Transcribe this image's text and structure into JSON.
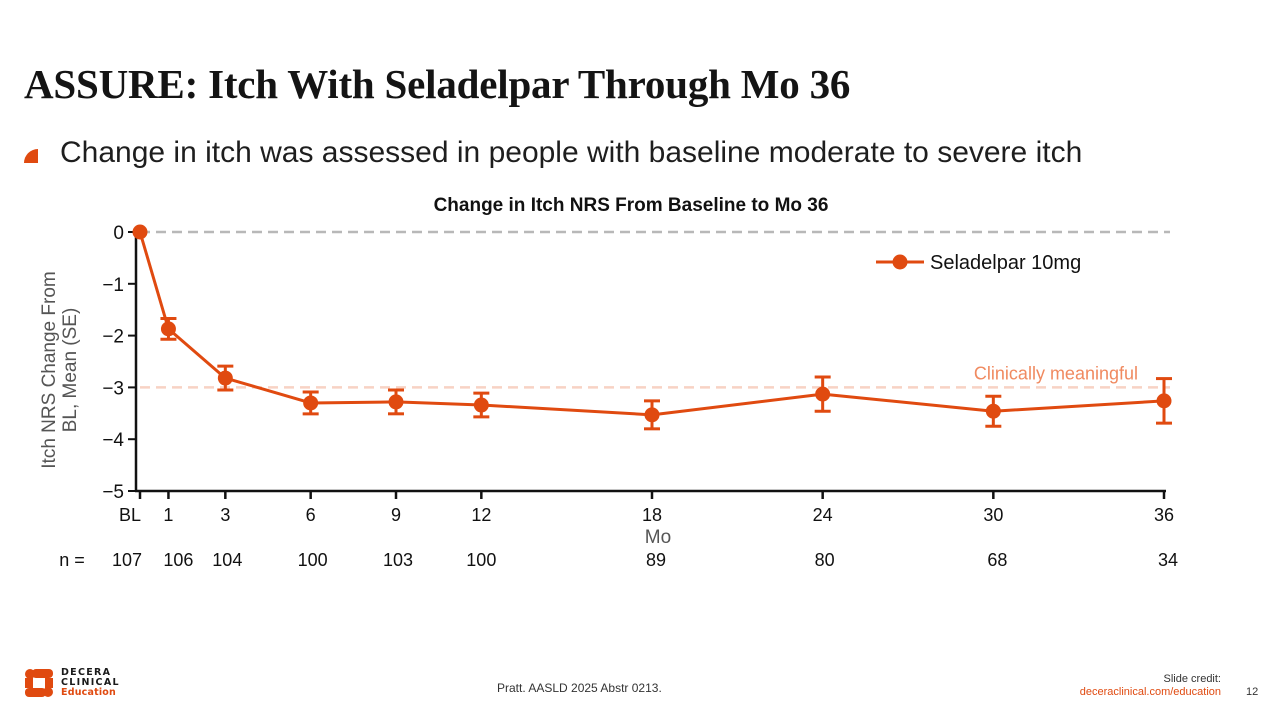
{
  "slide": {
    "title": "ASSURE: Itch With Seladelpar Through Mo 36",
    "bullet": "Change in itch was assessed in people with baseline moderate to severe itch",
    "citation": "Pratt. AASLD 2025 Abstr 0213.",
    "credit_label": "Slide credit:",
    "credit_url": "deceraclinical.com/education",
    "page_number": "12",
    "logo": {
      "line1": "DECERA",
      "line2": "CLINICAL",
      "line3": "Education"
    }
  },
  "colors": {
    "series": "#e04a10",
    "reference_zero": "#b8b8b8",
    "reference_clinical": "#f8d2c4",
    "clinical_label": "#f08a60",
    "axis": "#111111"
  },
  "chart_data": {
    "type": "line",
    "title": "Change in Itch NRS From Baseline to Mo 36",
    "xlabel": "Mo",
    "ylabel": "Itch NRS Change From BL, Mean (SE)",
    "ylim": [
      -5,
      0
    ],
    "xlim": [
      0,
      36
    ],
    "yticks": [
      0,
      -1,
      -2,
      -3,
      -4,
      -5
    ],
    "ytick_labels": [
      "0",
      "−1",
      "−2",
      "−3",
      "−4",
      "−5"
    ],
    "x": [
      0,
      1,
      3,
      6,
      9,
      12,
      18,
      24,
      30,
      36
    ],
    "xtick_labels": [
      "BL",
      "1",
      "3",
      "6",
      "9",
      "12",
      "18",
      "24",
      "30",
      "36"
    ],
    "n_label": "n =",
    "n": [
      "107",
      "106",
      "104",
      "100",
      "103",
      "100",
      "89",
      "80",
      "68",
      "34"
    ],
    "series": [
      {
        "name": "Seladelpar 10mg",
        "values": [
          0,
          -1.87,
          -2.82,
          -3.3,
          -3.28,
          -3.34,
          -3.53,
          -3.13,
          -3.46,
          -3.26
        ],
        "se": [
          0,
          0.2,
          0.23,
          0.21,
          0.23,
          0.23,
          0.27,
          0.33,
          0.29,
          0.43
        ]
      }
    ],
    "reference_lines": [
      {
        "y": 0,
        "label": ""
      },
      {
        "y": -3,
        "label": "Clinically meaningful"
      }
    ],
    "legend": {
      "placement": "top-right"
    },
    "grid": false
  }
}
